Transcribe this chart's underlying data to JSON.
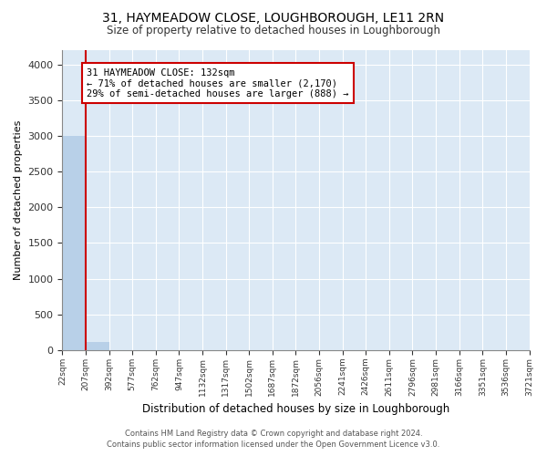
{
  "title": "31, HAYMEADOW CLOSE, LOUGHBOROUGH, LE11 2RN",
  "subtitle": "Size of property relative to detached houses in Loughborough",
  "xlabel": "Distribution of detached houses by size in Loughborough",
  "ylabel": "Number of detached properties",
  "bar_color": "#b8d0e8",
  "bg_color": "#dce9f5",
  "grid_color": "#ffffff",
  "bins": [
    "22sqm",
    "207sqm",
    "392sqm",
    "577sqm",
    "762sqm",
    "947sqm",
    "1132sqm",
    "1317sqm",
    "1502sqm",
    "1687sqm",
    "1872sqm",
    "2056sqm",
    "2241sqm",
    "2426sqm",
    "2611sqm",
    "2796sqm",
    "2981sqm",
    "3166sqm",
    "3351sqm",
    "3536sqm",
    "3721sqm"
  ],
  "values": [
    3000,
    110,
    0,
    0,
    0,
    0,
    0,
    0,
    0,
    0,
    0,
    0,
    0,
    0,
    0,
    0,
    0,
    0,
    0,
    0
  ],
  "ylim": [
    0,
    4200
  ],
  "yticks": [
    0,
    500,
    1000,
    1500,
    2000,
    2500,
    3000,
    3500,
    4000
  ],
  "annotation_text": "31 HAYMEADOW CLOSE: 132sqm\n← 71% of detached houses are smaller (2,170)\n29% of semi-detached houses are larger (888) →",
  "annotation_box_color": "#ffffff",
  "annotation_border_color": "#cc0000",
  "property_line_color": "#cc0000",
  "footer_line1": "Contains HM Land Registry data © Crown copyright and database right 2024.",
  "footer_line2": "Contains public sector information licensed under the Open Government Licence v3.0."
}
